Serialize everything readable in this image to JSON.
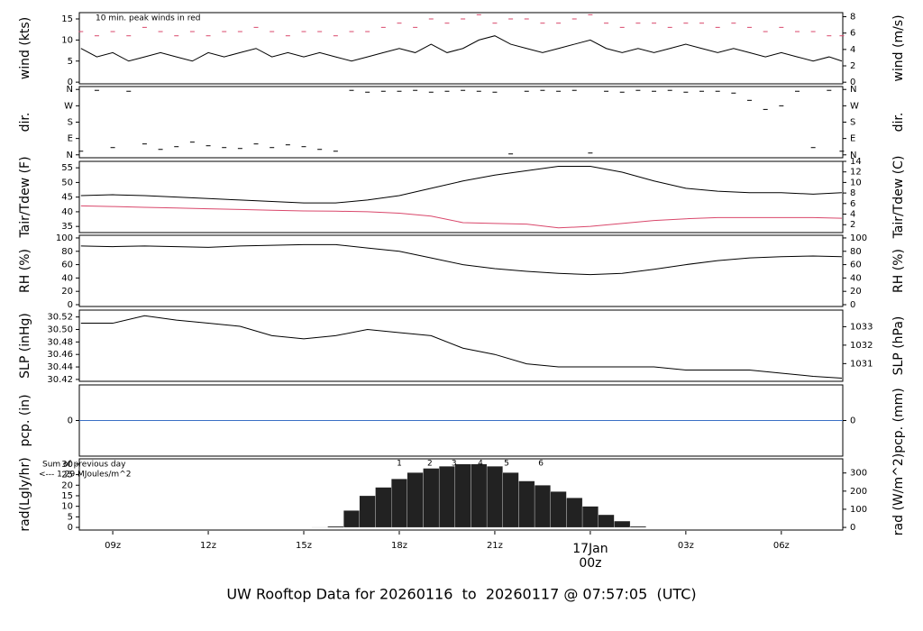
{
  "chart_data": [
    {
      "type": "line",
      "ylabel": "wind (kts)",
      "y2label": "wind (m/s)",
      "annotation": "10 min. peak winds in red",
      "annotation_color": "#d9476b",
      "xlim": [
        7.95,
        31.93
      ],
      "ylim": [
        -0.4,
        16.5
      ],
      "yticks": [
        0,
        5,
        10,
        15
      ],
      "y2lim": [
        -0.2,
        8.5
      ],
      "y2ticks": [
        0,
        2,
        4,
        6,
        8
      ],
      "x": [
        8,
        8.5,
        9,
        9.5,
        10,
        10.5,
        11,
        11.5,
        12,
        12.5,
        13,
        13.5,
        14,
        14.5,
        15,
        15.5,
        16,
        16.5,
        17,
        17.5,
        18,
        18.5,
        19,
        19.5,
        20,
        20.5,
        21,
        21.5,
        22,
        22.5,
        23,
        23.5,
        24,
        24.5,
        25,
        25.5,
        26,
        26.5,
        27,
        27.5,
        28,
        28.5,
        29,
        29.5,
        30,
        30.5,
        31,
        31.5,
        31.9
      ],
      "series": [
        {
          "name": "wind",
          "color": "#000000",
          "values": [
            8,
            6,
            7,
            5,
            6,
            7,
            6,
            5,
            7,
            6,
            7,
            8,
            6,
            7,
            6,
            7,
            6,
            5,
            6,
            7,
            8,
            7,
            9,
            7,
            8,
            10,
            11,
            9,
            8,
            7,
            8,
            9,
            10,
            8,
            7,
            8,
            7,
            8,
            9,
            8,
            7,
            8,
            7,
            6,
            7,
            6,
            5,
            6,
            5
          ]
        },
        {
          "name": "peak",
          "color": "#d9476b",
          "style": "dash",
          "values": [
            12,
            11,
            12,
            11,
            13,
            12,
            11,
            12,
            11,
            12,
            12,
            13,
            12,
            11,
            12,
            12,
            11,
            12,
            12,
            13,
            14,
            13,
            15,
            14,
            15,
            16,
            14,
            15,
            15,
            14,
            14,
            15,
            16,
            14,
            13,
            14,
            14,
            13,
            14,
            14,
            13,
            14,
            13,
            12,
            13,
            12,
            12,
            11,
            11
          ]
        }
      ]
    },
    {
      "type": "scatter",
      "ylabel": "dir.",
      "y2label": "dir.",
      "xlim": [
        7.95,
        31.93
      ],
      "ylim": [
        -16,
        376
      ],
      "yticks": [
        {
          "value": 0,
          "label": "N"
        },
        {
          "value": 90,
          "label": "E"
        },
        {
          "value": 180,
          "label": "S"
        },
        {
          "value": 270,
          "label": "W"
        },
        {
          "value": 360,
          "label": "N"
        }
      ],
      "y2lim": [
        -16,
        376
      ],
      "y2ticks": [
        {
          "value": 0,
          "label": "N"
        },
        {
          "value": 90,
          "label": "E"
        },
        {
          "value": 180,
          "label": "S"
        },
        {
          "value": 270,
          "label": "W"
        },
        {
          "value": 360,
          "label": "N"
        }
      ],
      "x": [
        8,
        8.5,
        9,
        9.5,
        10,
        10.5,
        11,
        11.5,
        12,
        12.5,
        13,
        13.5,
        14,
        14.5,
        15,
        15.5,
        16,
        16.5,
        17,
        17.5,
        18,
        18.5,
        19,
        19.5,
        20,
        20.5,
        21,
        21.5,
        22,
        22.5,
        23,
        23.5,
        24,
        24.5,
        25,
        25.5,
        26,
        26.5,
        27,
        27.5,
        28,
        28.5,
        29,
        29.5,
        30,
        30.5,
        31,
        31.5,
        31.9
      ],
      "series": [
        {
          "name": "dir",
          "color": "#000000",
          "values": [
            20,
            355,
            40,
            350,
            60,
            30,
            45,
            70,
            50,
            40,
            35,
            60,
            40,
            55,
            45,
            30,
            20,
            355,
            345,
            350,
            350,
            355,
            345,
            350,
            355,
            350,
            345,
            5,
            350,
            355,
            350,
            355,
            10,
            350,
            345,
            355,
            350,
            355,
            345,
            350,
            350,
            340,
            300,
            250,
            270,
            350,
            40,
            355,
            20
          ]
        }
      ]
    },
    {
      "type": "line",
      "ylabel": "Tair/Tdew (F)",
      "y2label": "Tair/Tdew (C)",
      "xlim": [
        7.95,
        31.93
      ],
      "ylim": [
        32.9,
        57.2
      ],
      "yticks": [
        35,
        40,
        45,
        50,
        55
      ],
      "y2lim": [
        0.5,
        14
      ],
      "y2ticks": [
        2,
        4,
        6,
        8,
        10,
        12,
        14
      ],
      "x": [
        8,
        9,
        10,
        11,
        12,
        13,
        14,
        15,
        16,
        17,
        18,
        19,
        20,
        21,
        22,
        23,
        24,
        25,
        26,
        27,
        28,
        29,
        30,
        31,
        31.9
      ],
      "series": [
        {
          "name": "Tair",
          "color": "#000000",
          "values": [
            45.5,
            45.8,
            45.5,
            45,
            44.5,
            44,
            43.5,
            43,
            43,
            44,
            45.5,
            48,
            50.5,
            52.5,
            54,
            55.5,
            55.5,
            53.5,
            50.5,
            48,
            47,
            46.5,
            46.5,
            46,
            46.5
          ]
        },
        {
          "name": "Tdew",
          "color": "#d9476b",
          "values": [
            42,
            41.8,
            41.5,
            41.3,
            41,
            40.8,
            40.5,
            40.3,
            40.2,
            40,
            39.5,
            38.5,
            36.3,
            36,
            35.8,
            34.5,
            35,
            36,
            37,
            37.6,
            38,
            38,
            38,
            38,
            37.8
          ]
        }
      ]
    },
    {
      "type": "line",
      "ylabel": "RH (%)",
      "y2label": "RH (%)",
      "xlim": [
        7.95,
        31.93
      ],
      "ylim": [
        -2.7,
        104
      ],
      "yticks": [
        0,
        20,
        40,
        60,
        80,
        100
      ],
      "y2lim": [
        -2.7,
        104
      ],
      "y2ticks": [
        0,
        20,
        40,
        60,
        80,
        100
      ],
      "x": [
        8,
        9,
        10,
        11,
        12,
        13,
        14,
        15,
        16,
        17,
        18,
        19,
        20,
        21,
        22,
        23,
        24,
        25,
        26,
        27,
        28,
        29,
        30,
        31,
        31.9
      ],
      "series": [
        {
          "name": "RH",
          "color": "#000000",
          "values": [
            88,
            87,
            88,
            87,
            86,
            88,
            89,
            90,
            90,
            85,
            80,
            70,
            60,
            54,
            50,
            47,
            45,
            47,
            53,
            60,
            66,
            70,
            72,
            73,
            72
          ]
        }
      ]
    },
    {
      "type": "line",
      "ylabel": "SLP (inHg)",
      "y2label": "SLP (hPa)",
      "xlim": [
        7.95,
        31.93
      ],
      "ylim": [
        30.417,
        30.531
      ],
      "yticks": [
        30.42,
        30.44,
        30.46,
        30.48,
        {
          "value": 30.5,
          "label": "30.50"
        },
        30.52
      ],
      "y2lim": [
        1030.04,
        1033.9
      ],
      "y2ticks": [
        1031,
        1032,
        1033
      ],
      "x": [
        8,
        9,
        10,
        11,
        12,
        13,
        14,
        15,
        16,
        17,
        18,
        19,
        20,
        21,
        22,
        23,
        24,
        25,
        26,
        27,
        28,
        29,
        30,
        31,
        31.9
      ],
      "series": [
        {
          "name": "SLP",
          "color": "#000000",
          "values": [
            30.51,
            30.51,
            30.522,
            30.515,
            30.51,
            30.505,
            30.49,
            30.485,
            30.49,
            30.5,
            30.495,
            30.49,
            30.47,
            30.46,
            30.445,
            30.44,
            30.44,
            30.44,
            30.44,
            30.435,
            30.435,
            30.435,
            30.43,
            30.425,
            30.422
          ]
        }
      ]
    },
    {
      "type": "line",
      "ylabel": "pcp. (in)",
      "y2label": "pcp. (mm)",
      "xlim": [
        7.95,
        31.93
      ],
      "ylim": [
        -0.1,
        0.1
      ],
      "yticks": [
        0
      ],
      "y2lim": [
        -2.54,
        2.54
      ],
      "y2ticks": [
        0
      ],
      "x": [
        7.95,
        31.93
      ],
      "series": [
        {
          "name": "pcp",
          "color": "#3a6fc4",
          "values": [
            0,
            0
          ]
        }
      ]
    },
    {
      "type": "bar",
      "ylabel": "rad(Lgly/hr)",
      "y2label": "rad (W/m^2)",
      "xlim": [
        7.95,
        31.93
      ],
      "ylim": [
        -1.25,
        32.5
      ],
      "yticks": [
        0,
        5,
        10,
        15,
        20,
        25,
        30
      ],
      "y2lim": [
        -14.5,
        378
      ],
      "y2ticks": [
        0,
        100,
        200,
        300
      ],
      "notes": [
        "Sum of previous day",
        "<--- 1.29 MJoules/m^2"
      ],
      "note_color": "#a020f0",
      "hour_marks": {
        "values": [
          1,
          2,
          3,
          4,
          5,
          6
        ],
        "x": [
          18,
          18.96,
          19.72,
          20.55,
          21.37,
          22.45
        ]
      },
      "x": [
        15.5,
        16,
        16.5,
        17,
        17.5,
        18,
        18.5,
        19,
        19.5,
        20,
        20.5,
        21,
        21.5,
        22,
        22.5,
        23,
        23.5,
        24,
        24.5,
        25,
        25.5
      ],
      "series": [
        {
          "name": "rad",
          "color": "#222222",
          "values": [
            0.1,
            0.5,
            8,
            15,
            19,
            23,
            26,
            28,
            29,
            30,
            30,
            29,
            26,
            22,
            20,
            17,
            14,
            10,
            6,
            3,
            0.5
          ]
        }
      ],
      "xticks": [
        {
          "value": 9,
          "label": "09z"
        },
        {
          "value": 12,
          "label": "12z"
        },
        {
          "value": 15,
          "label": "15z"
        },
        {
          "value": 18,
          "label": "18z"
        },
        {
          "value": 21,
          "label": "21z"
        },
        {
          "value": 24,
          "label": "00z",
          "color": "#d9476b"
        },
        {
          "value": 27,
          "label": "03z"
        },
        {
          "value": 30,
          "label": "06z"
        }
      ],
      "date_label": {
        "text": "17Jan",
        "x": 24,
        "color": "#d9476b"
      }
    }
  ],
  "footer": {
    "text": "UW Rooftop Data for 20260116  to  20260117 @ 07:57:05  (UTC)",
    "color": "#2a90d0"
  }
}
